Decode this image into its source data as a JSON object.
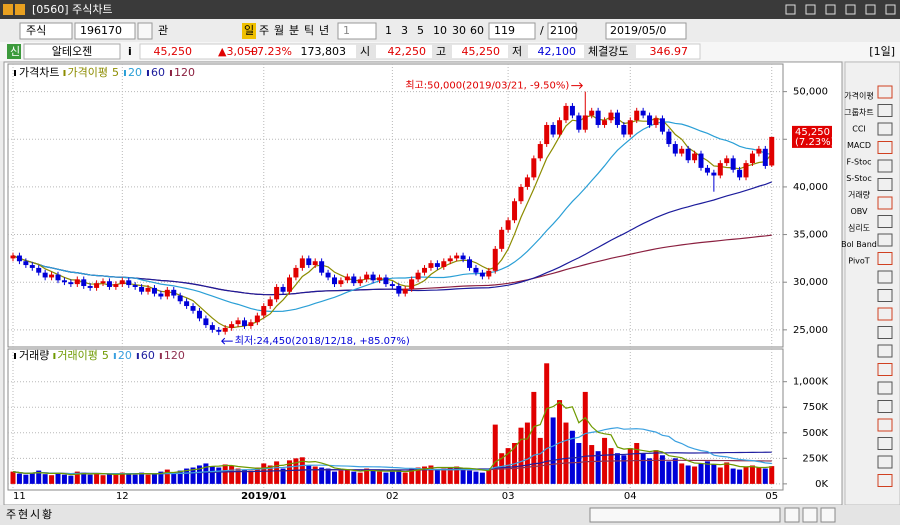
{
  "window_title": "[0560] 주식차트",
  "toolbar": {
    "market": "주식",
    "code": "196170",
    "watch": "관",
    "periods": [
      "일",
      "주",
      "월",
      "분",
      "틱",
      "년"
    ],
    "period_count": "1",
    "intervals": [
      "1",
      "3",
      "5",
      "10",
      "30",
      "60"
    ],
    "shown": "119",
    "sep": "/",
    "total": "2100",
    "date": "2019/05/0"
  },
  "quote": {
    "badge": "신",
    "name": "알테오젠",
    "info": "i",
    "price": "45,250",
    "change": "▲3,050",
    "rate": "+7.23%",
    "volume": "173,803",
    "open_label": "시",
    "open": "42,250",
    "high_label": "고",
    "high": "45,250",
    "low_label": "저",
    "low": "42,100",
    "strength_label": "체결강도",
    "strength": "346.97",
    "period": "[1일]"
  },
  "sidebar": [
    "가격이평",
    "그룹차트",
    "CCI",
    "MACD",
    "F-Stoc",
    "S-Stoc",
    "거래량",
    "OBV",
    "심리도",
    "Bol Band",
    "PivoT"
  ],
  "footer_tabs": [
    "주",
    "현",
    "시",
    "황"
  ],
  "chart_data": [
    {
      "type": "candlestick",
      "legend_title": "가격차트",
      "ma_title": "가격이평",
      "ma": [
        {
          "name": "5",
          "color": "#8c8c00"
        },
        {
          "name": "20",
          "color": "#2a9fd6"
        },
        {
          "name": "60",
          "color": "#1c1c9c"
        },
        {
          "name": "120",
          "color": "#8b2040"
        }
      ],
      "up_color": "#e00000",
      "down_color": "#0000d8",
      "grid": true,
      "open": [
        32500,
        32800,
        32200,
        31800,
        31500,
        31000,
        30500,
        30800,
        30200,
        30000,
        29800,
        30300,
        29600,
        29400,
        29900,
        30100,
        29500,
        29800,
        30200,
        29700,
        29500,
        29000,
        29400,
        28800,
        28500,
        29200,
        28600,
        28000,
        27500,
        27000,
        26200,
        25500,
        25000,
        24800,
        25200,
        25600,
        26000,
        25400,
        25800,
        26500,
        27500,
        28200,
        29500,
        29000,
        30500,
        31500,
        32500,
        31800,
        32200,
        31000,
        30500,
        29800,
        30200,
        30600,
        29900,
        30300,
        30800,
        30200,
        30500,
        29800,
        29600,
        28800,
        29300,
        30300,
        31000,
        31500,
        32000,
        31600,
        32200,
        32500,
        32800,
        32400,
        31500,
        31000,
        30600,
        31200,
        33500,
        35500,
        36500,
        38500,
        40000,
        41000,
        43000,
        44500,
        46500,
        45500,
        47000,
        48500,
        47500,
        46000,
        47500,
        48000,
        46500,
        47000,
        47800,
        46500,
        45500,
        47000,
        48000,
        47500,
        46500,
        47200,
        45800,
        44500,
        43500,
        44000,
        42800,
        43500,
        42000,
        41500,
        41200,
        42500,
        43000,
        41800,
        41000,
        42500,
        43500,
        44000,
        42250
      ],
      "high": [
        33100,
        33100,
        32500,
        32100,
        31800,
        31300,
        31100,
        31100,
        30500,
        30300,
        30600,
        30600,
        29900,
        30200,
        30400,
        30400,
        30100,
        30500,
        30500,
        30000,
        29800,
        29700,
        29700,
        29100,
        29500,
        29500,
        28900,
        28300,
        27800,
        27300,
        26500,
        25800,
        25300,
        25500,
        25900,
        26300,
        26300,
        26100,
        26800,
        27800,
        28500,
        29800,
        29800,
        30800,
        31800,
        32800,
        32800,
        32500,
        32500,
        31300,
        30800,
        30500,
        30900,
        30900,
        30600,
        31100,
        31100,
        30800,
        30800,
        30100,
        29900,
        29600,
        30600,
        31300,
        31800,
        32300,
        32300,
        32500,
        32800,
        33100,
        33100,
        32700,
        31800,
        31300,
        31500,
        33800,
        35800,
        36800,
        38800,
        40300,
        41300,
        43300,
        44800,
        46800,
        46800,
        47300,
        48800,
        48800,
        47800,
        50000,
        48300,
        48300,
        47300,
        48100,
        48100,
        46800,
        47300,
        48300,
        48300,
        47800,
        47500,
        47500,
        46100,
        44800,
        44300,
        44300,
        43800,
        43800,
        42300,
        41800,
        42800,
        43300,
        43300,
        42100,
        42800,
        43800,
        44300,
        44300,
        45250
      ],
      "low": [
        32200,
        31900,
        31500,
        31200,
        30700,
        30200,
        30200,
        29900,
        29700,
        29500,
        29500,
        29300,
        29100,
        29100,
        29600,
        29200,
        29200,
        29500,
        29400,
        29200,
        28700,
        28700,
        28500,
        28200,
        28200,
        28300,
        27700,
        27200,
        26700,
        25900,
        25200,
        24700,
        24450,
        24500,
        24900,
        25300,
        25100,
        25100,
        25500,
        26200,
        27200,
        27900,
        28700,
        28700,
        30200,
        31200,
        31500,
        31500,
        30700,
        30200,
        29500,
        29500,
        29900,
        29600,
        29600,
        30000,
        29900,
        29900,
        29500,
        29300,
        28500,
        28500,
        29000,
        30000,
        30700,
        31200,
        31300,
        31300,
        31900,
        32200,
        32100,
        31200,
        30700,
        30300,
        30300,
        30900,
        33200,
        35200,
        36200,
        38200,
        39700,
        40700,
        42700,
        44200,
        45200,
        45200,
        46700,
        47200,
        45700,
        45700,
        47200,
        46200,
        46200,
        46700,
        46200,
        45200,
        45200,
        46700,
        47200,
        46200,
        46200,
        45500,
        44200,
        43200,
        43200,
        42500,
        42500,
        41700,
        41200,
        39500,
        40900,
        42200,
        41500,
        40700,
        40700,
        42200,
        43200,
        41900,
        42100
      ],
      "close": [
        32800,
        32200,
        31800,
        31500,
        31000,
        30500,
        30800,
        30200,
        30000,
        29800,
        30300,
        29600,
        29400,
        29900,
        30100,
        29500,
        29800,
        30200,
        29700,
        29500,
        29000,
        29400,
        28800,
        28500,
        29200,
        28600,
        28000,
        27500,
        27000,
        26200,
        25500,
        25000,
        24800,
        25200,
        25600,
        26000,
        25400,
        25800,
        26500,
        27500,
        28200,
        29500,
        29000,
        30500,
        31500,
        32500,
        31800,
        32200,
        31000,
        30500,
        29800,
        30200,
        30600,
        29900,
        30300,
        30800,
        30200,
        30500,
        29800,
        29600,
        28800,
        29300,
        30300,
        31000,
        31500,
        32000,
        31600,
        32200,
        32500,
        32800,
        32400,
        31500,
        31000,
        30600,
        31200,
        33500,
        35500,
        36500,
        38500,
        40000,
        41000,
        43000,
        44500,
        46500,
        45500,
        47000,
        48500,
        47500,
        46000,
        47500,
        48000,
        46500,
        47000,
        47800,
        46500,
        45500,
        47000,
        48000,
        47500,
        46500,
        47200,
        45800,
        44500,
        43500,
        44000,
        42800,
        43500,
        42000,
        41500,
        41200,
        42500,
        43000,
        41800,
        41000,
        42500,
        43500,
        44000,
        42200,
        45250
      ],
      "ylim": [
        23200,
        52900
      ],
      "yticks": [
        {
          "value": 25000,
          "label": "25,000"
        },
        {
          "value": 30000,
          "label": "30,000"
        },
        {
          "value": 35000,
          "label": "35,000"
        },
        {
          "value": 40000,
          "label": "40,000"
        },
        {
          "value": 45000,
          "label": "45,000"
        },
        {
          "value": 50000,
          "label": "50,000"
        }
      ],
      "date_ticks": [
        {
          "value": 0,
          "label": "11"
        },
        {
          "value": 17,
          "label": "12"
        },
        {
          "value": 39,
          "label": "2019/01"
        },
        {
          "value": 59,
          "label": "02"
        },
        {
          "value": 77,
          "label": "03"
        },
        {
          "value": 96,
          "label": "04"
        },
        {
          "value": 118,
          "label": "05"
        }
      ],
      "max_label": "최고:50,000(2019/03/21, -9.50%)",
      "min_label": "최저:24,450(2018/12/18, +85.07%)",
      "last_label": "45,250",
      "last_rate": "(7.23%)"
    },
    {
      "type": "volume",
      "legend_title": "거래량",
      "ma_title": "거래이평",
      "ma": [
        {
          "name": "5",
          "color": "#6f9a00"
        },
        {
          "name": "20",
          "color": "#3aa0e0"
        },
        {
          "name": "60",
          "color": "#2020a0"
        },
        {
          "name": "120",
          "color": "#903050"
        }
      ],
      "values": [
        120000,
        100000,
        90000,
        110000,
        130000,
        95000,
        85000,
        100000,
        90000,
        80000,
        120000,
        110000,
        90000,
        100000,
        85000,
        95000,
        90000,
        110000,
        100000,
        90000,
        110000,
        90000,
        100000,
        120000,
        140000,
        110000,
        130000,
        150000,
        160000,
        180000,
        200000,
        170000,
        160000,
        190000,
        180000,
        150000,
        140000,
        130000,
        160000,
        200000,
        180000,
        220000,
        150000,
        230000,
        250000,
        260000,
        180000,
        170000,
        160000,
        150000,
        120000,
        130000,
        140000,
        120000,
        110000,
        150000,
        130000,
        120000,
        110000,
        120000,
        140000,
        110000,
        150000,
        160000,
        170000,
        180000,
        140000,
        150000,
        160000,
        170000,
        150000,
        130000,
        120000,
        110000,
        140000,
        580000,
        300000,
        350000,
        400000,
        550000,
        600000,
        900000,
        450000,
        1180000,
        650000,
        820000,
        600000,
        520000,
        400000,
        900000,
        380000,
        320000,
        450000,
        350000,
        300000,
        280000,
        350000,
        400000,
        300000,
        250000,
        330000,
        280000,
        220000,
        250000,
        200000,
        180000,
        170000,
        200000,
        220000,
        190000,
        160000,
        210000,
        150000,
        140000,
        170000,
        180000,
        160000,
        150000,
        173803
      ],
      "ylim": [
        -60000,
        1320000
      ],
      "yticks": [
        {
          "value": 0,
          "label": "0K"
        },
        {
          "value": 250000,
          "label": "250K"
        },
        {
          "value": 500000,
          "label": "500K"
        },
        {
          "value": 750000,
          "label": "750K"
        },
        {
          "value": 1000000,
          "label": "1,000K"
        }
      ]
    }
  ]
}
